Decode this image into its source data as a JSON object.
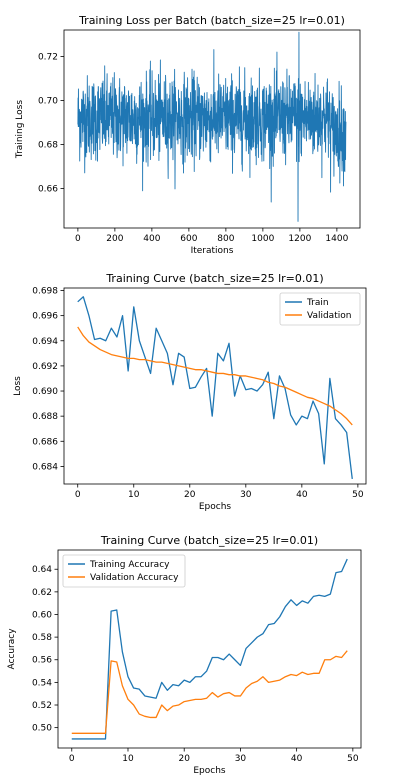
{
  "chart_data": [
    {
      "type": "line",
      "title": "Training Loss per Batch (batch_size=25 lr=0.01)",
      "xlabel": "Iterations",
      "ylabel": "Training Loss",
      "xlim": [
        -75,
        1525
      ],
      "ylim": [
        0.642,
        0.732
      ],
      "xticks": [
        0,
        200,
        400,
        600,
        800,
        1000,
        1200,
        1400
      ],
      "yticks": [
        0.66,
        0.68,
        0.7,
        0.72
      ],
      "ytick_labels": [
        "0.66",
        "0.68",
        "0.70",
        "0.72"
      ],
      "legend": "none",
      "grid": false,
      "series": [
        {
          "color": "#1f77b4",
          "x_start": 0,
          "x_step": 1,
          "count": 1450,
          "mean": 0.692,
          "spread": 0.0095,
          "note_min": 0.645,
          "note_max": 0.731,
          "values": []
        }
      ]
    },
    {
      "type": "line",
      "title": "Training Curve (batch_size=25 lr=0.01)",
      "xlabel": "Epochs",
      "ylabel": "Loss",
      "xlim": [
        -2.45,
        51.45
      ],
      "ylim": [
        0.6826,
        0.6982
      ],
      "xticks": [
        0,
        10,
        20,
        30,
        40,
        50
      ],
      "yticks": [
        0.684,
        0.686,
        0.688,
        0.69,
        0.692,
        0.694,
        0.696,
        0.698
      ],
      "ytick_labels": [
        "0.684",
        "0.686",
        "0.688",
        "0.690",
        "0.692",
        "0.694",
        "0.696",
        "0.698"
      ],
      "legend": "top-right",
      "grid": false,
      "x": [
        0,
        1,
        2,
        3,
        4,
        5,
        6,
        7,
        8,
        9,
        10,
        11,
        12,
        13,
        14,
        15,
        16,
        17,
        18,
        19,
        20,
        21,
        22,
        23,
        24,
        25,
        26,
        27,
        28,
        29,
        30,
        31,
        32,
        33,
        34,
        35,
        36,
        37,
        38,
        39,
        40,
        41,
        42,
        43,
        44,
        45,
        46,
        47,
        48,
        49
      ],
      "series": [
        {
          "name": "Train",
          "color": "#1f77b4",
          "values": [
            0.6971,
            0.6975,
            0.696,
            0.6941,
            0.6942,
            0.694,
            0.695,
            0.6943,
            0.696,
            0.6916,
            0.6967,
            0.694,
            0.6927,
            0.6914,
            0.695,
            0.694,
            0.693,
            0.6905,
            0.693,
            0.6927,
            0.6902,
            0.6903,
            0.6911,
            0.6918,
            0.688,
            0.693,
            0.6924,
            0.6938,
            0.6896,
            0.6912,
            0.6901,
            0.6902,
            0.69,
            0.6905,
            0.6915,
            0.6878,
            0.6912,
            0.6902,
            0.6881,
            0.6873,
            0.688,
            0.6878,
            0.6892,
            0.6882,
            0.6842,
            0.691,
            0.6878,
            0.6873,
            0.6867,
            0.683
          ]
        },
        {
          "name": "Validation",
          "color": "#ff7f0e",
          "values": [
            0.6951,
            0.6944,
            0.6939,
            0.6936,
            0.6933,
            0.6931,
            0.6929,
            0.6928,
            0.6927,
            0.6926,
            0.6926,
            0.6925,
            0.6925,
            0.6924,
            0.6923,
            0.6923,
            0.6922,
            0.6921,
            0.692,
            0.6919,
            0.6918,
            0.6917,
            0.6917,
            0.6916,
            0.6915,
            0.6914,
            0.6914,
            0.6913,
            0.6913,
            0.6912,
            0.6912,
            0.6911,
            0.691,
            0.6909,
            0.6907,
            0.6906,
            0.6904,
            0.6903,
            0.6901,
            0.6899,
            0.6897,
            0.6895,
            0.6894,
            0.6892,
            0.689,
            0.6888,
            0.6885,
            0.6882,
            0.6878,
            0.6873
          ]
        }
      ]
    },
    {
      "type": "line",
      "title": "Training Curve (batch_size=25 lr=0.01)",
      "xlabel": "Epochs",
      "ylabel": "Accuracy",
      "xlim": [
        -2.45,
        51.45
      ],
      "ylim": [
        0.482,
        0.657
      ],
      "xticks": [
        0,
        10,
        20,
        30,
        40,
        50
      ],
      "yticks": [
        0.5,
        0.52,
        0.54,
        0.56,
        0.58,
        0.6,
        0.62,
        0.64
      ],
      "ytick_labels": [
        "0.50",
        "0.52",
        "0.54",
        "0.56",
        "0.58",
        "0.60",
        "0.62",
        "0.64"
      ],
      "legend": "top-left",
      "grid": false,
      "x": [
        0,
        1,
        2,
        3,
        4,
        5,
        6,
        7,
        8,
        9,
        10,
        11,
        12,
        13,
        14,
        15,
        16,
        17,
        18,
        19,
        20,
        21,
        22,
        23,
        24,
        25,
        26,
        27,
        28,
        29,
        30,
        31,
        32,
        33,
        34,
        35,
        36,
        37,
        38,
        39,
        40,
        41,
        42,
        43,
        44,
        45,
        46,
        47,
        48,
        49
      ],
      "series": [
        {
          "name": "Training Accuracy",
          "color": "#1f77b4",
          "values": [
            0.49,
            0.49,
            0.49,
            0.49,
            0.49,
            0.49,
            0.49,
            0.603,
            0.604,
            0.567,
            0.545,
            0.535,
            0.534,
            0.528,
            0.527,
            0.526,
            0.54,
            0.533,
            0.538,
            0.537,
            0.542,
            0.54,
            0.545,
            0.545,
            0.55,
            0.562,
            0.562,
            0.56,
            0.565,
            0.56,
            0.555,
            0.57,
            0.575,
            0.58,
            0.583,
            0.591,
            0.592,
            0.598,
            0.607,
            0.613,
            0.608,
            0.612,
            0.61,
            0.616,
            0.617,
            0.616,
            0.618,
            0.637,
            0.638,
            0.649
          ]
        },
        {
          "name": "Validation Accuracy",
          "color": "#ff7f0e",
          "values": [
            0.495,
            0.495,
            0.495,
            0.495,
            0.495,
            0.495,
            0.495,
            0.559,
            0.558,
            0.537,
            0.525,
            0.52,
            0.512,
            0.51,
            0.509,
            0.509,
            0.52,
            0.515,
            0.519,
            0.52,
            0.523,
            0.524,
            0.525,
            0.525,
            0.526,
            0.531,
            0.527,
            0.53,
            0.531,
            0.528,
            0.528,
            0.535,
            0.539,
            0.541,
            0.545,
            0.54,
            0.541,
            0.542,
            0.545,
            0.547,
            0.546,
            0.549,
            0.547,
            0.548,
            0.548,
            0.56,
            0.56,
            0.563,
            0.562,
            0.568
          ]
        }
      ]
    }
  ]
}
